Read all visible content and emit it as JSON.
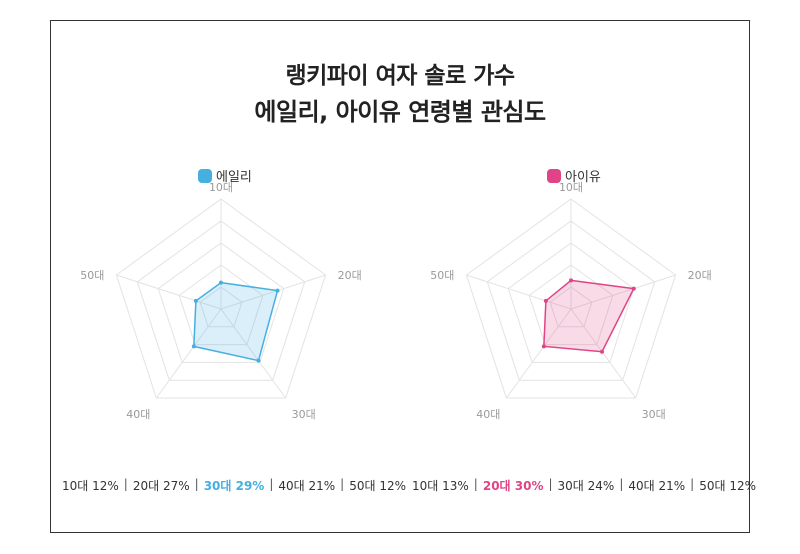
{
  "title_line1": "랭키파이 여자 솔로 가수",
  "title_line2": "에일리, 아이유 연령별 관심도",
  "chart_data": [
    {
      "type": "radar",
      "categories": [
        "10대",
        "20대",
        "30대",
        "40대",
        "50대"
      ],
      "series": [
        {
          "name": "에일리",
          "values": [
            12,
            27,
            29,
            21,
            12
          ],
          "color": "#45b0e0"
        }
      ],
      "value_unit": "%",
      "highlight_index": 2,
      "summary_items": [
        "10대 12%",
        "20대 27%",
        "30대 29%",
        "40대 21%",
        "50대 12%"
      ]
    },
    {
      "type": "radar",
      "categories": [
        "10대",
        "20대",
        "30대",
        "40대",
        "50대"
      ],
      "series": [
        {
          "name": "아이유",
          "values": [
            13,
            30,
            24,
            21,
            12
          ],
          "color": "#e04486"
        }
      ],
      "value_unit": "%",
      "highlight_index": 1,
      "summary_items": [
        "10대 13%",
        "20대 30%",
        "30대 24%",
        "40대 21%",
        "50대 12%"
      ]
    }
  ]
}
